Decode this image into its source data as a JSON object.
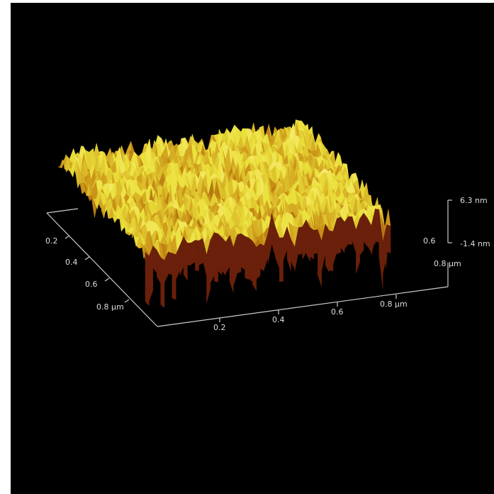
{
  "axes": {
    "left_axis": {
      "ticks": [
        "0.2",
        "0.4",
        "0.6",
        "0.8 µm"
      ]
    },
    "front_axis": {
      "ticks": [
        "0.2",
        "0.4",
        "0.6",
        "0.8 µm"
      ]
    },
    "z_axis": {
      "ticks": [
        "6.3 nm",
        "-1.4 nm"
      ]
    },
    "right_axis": {
      "ticks": [
        "0.6",
        "0.8 µm"
      ]
    }
  }
}
